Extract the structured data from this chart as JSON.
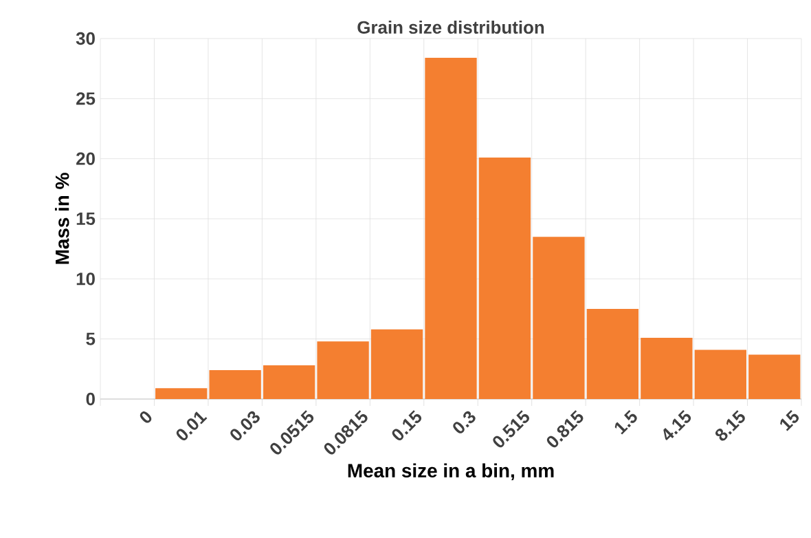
{
  "chart_data": {
    "type": "bar",
    "title": "Grain size distribution",
    "xlabel": "Mean size in a bin, mm",
    "ylabel": "Mass in %",
    "categories": [
      "0",
      "0.01",
      "0.03",
      "0.0515",
      "0.0815",
      "0.15",
      "0.3",
      "0.515",
      "0.815",
      "1.5",
      "4.15",
      "8.15",
      "15"
    ],
    "values": [
      0,
      0.9,
      2.4,
      2.8,
      4.8,
      5.8,
      28.4,
      20.1,
      13.5,
      7.5,
      5.1,
      4.1,
      3.7
    ],
    "color": "#f47f30",
    "ylim": [
      0,
      30
    ],
    "yticks": [
      0,
      5,
      10,
      15,
      20,
      25,
      30
    ],
    "grid": true
  }
}
